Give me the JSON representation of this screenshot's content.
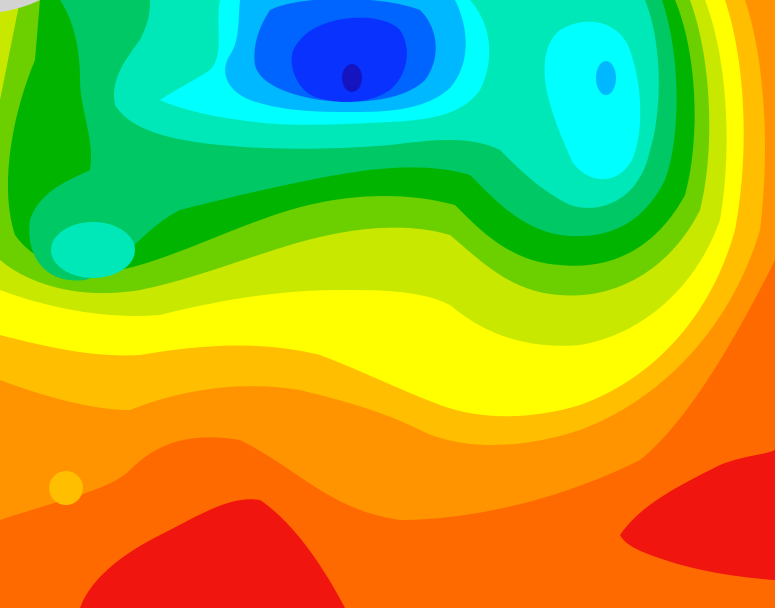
{
  "map": {
    "palette": {
      "corner_gray": "#d3d3d3",
      "red": "#f0150f",
      "dark_orange": "#ff6a00",
      "orange": "#ff9400",
      "amber": "#ffbe00",
      "yellow": "#ffff00",
      "yellow_green": "#c8e800",
      "light_green": "#6ccf00",
      "green": "#00b400",
      "emerald": "#00c864",
      "aquamarine": "#00e8b8",
      "cyan": "#00ffff",
      "sky_blue": "#00b8ff",
      "blue": "#0064ff",
      "deep_blue": "#0a32ff",
      "navy": "#1414c0"
    }
  }
}
